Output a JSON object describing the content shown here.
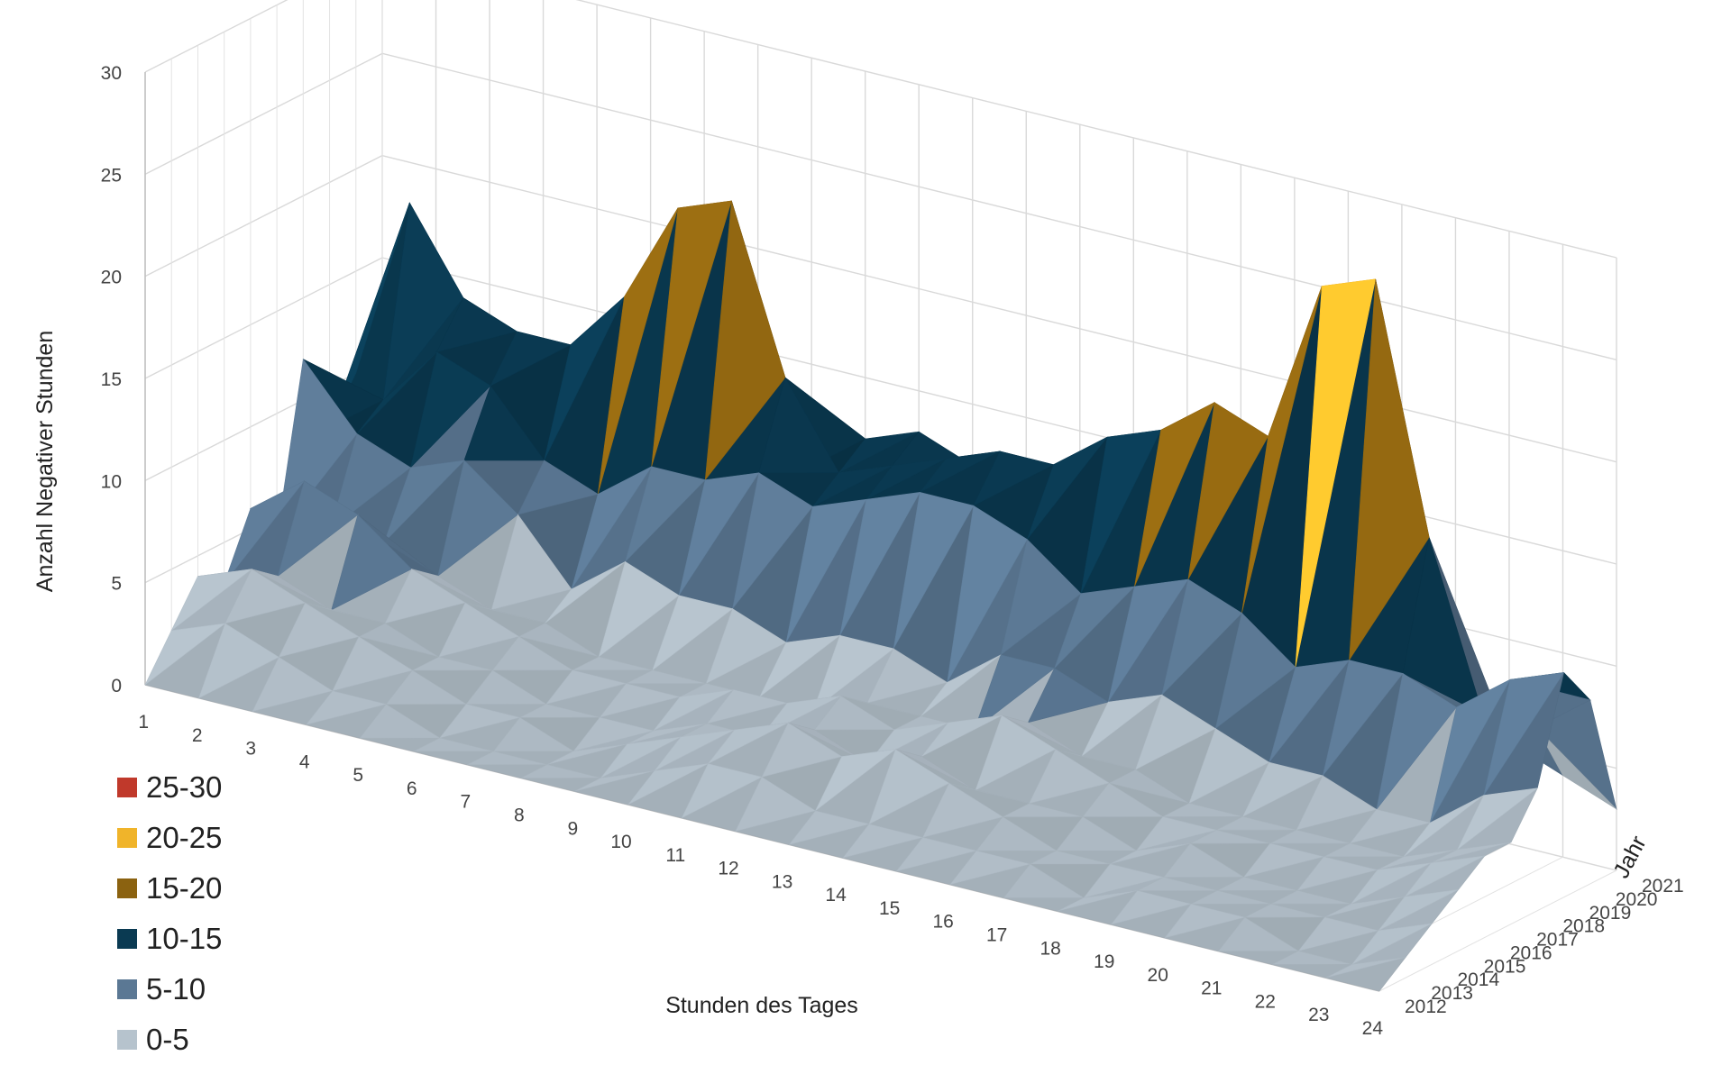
{
  "chart_data": {
    "type": "surface",
    "xlabel": "Stunden des Tages",
    "ylabel": "Anzahl Negativer Stunden",
    "zlabel": "Jahr",
    "zlim": [
      0,
      30
    ],
    "z_ticks": [
      "0",
      "5",
      "10",
      "15",
      "20",
      "25",
      "30"
    ],
    "x_ticks": [
      "1",
      "2",
      "3",
      "4",
      "5",
      "6",
      "7",
      "8",
      "9",
      "10",
      "11",
      "12",
      "13",
      "14",
      "15",
      "16",
      "17",
      "18",
      "19",
      "20",
      "21",
      "22",
      "23",
      "24"
    ],
    "years": [
      "2012",
      "2013",
      "2014",
      "2015",
      "2016",
      "2017",
      "2018",
      "2019",
      "2020",
      "2021"
    ],
    "grid": true,
    "legend_position": "bottom-left",
    "legend": [
      {
        "label": "25-30",
        "color": "#c0392b"
      },
      {
        "label": "20-25",
        "color": "#f0b42a"
      },
      {
        "label": "15-20",
        "color": "#8b6210"
      },
      {
        "label": "10-15",
        "color": "#0a3a52"
      },
      {
        "label": "5-10",
        "color": "#5b7894"
      },
      {
        "label": "0-5",
        "color": "#b6c3cd"
      }
    ],
    "series": [
      {
        "name": "2012",
        "values": [
          0,
          0,
          0,
          0,
          0,
          0,
          0,
          0,
          0,
          0,
          0,
          0,
          0,
          0,
          0,
          0,
          0,
          0,
          0,
          0,
          0,
          0,
          0,
          0
        ]
      },
      {
        "name": "2013",
        "values": [
          2,
          3,
          2,
          1,
          1,
          0,
          0,
          0,
          0,
          1,
          2,
          2,
          1,
          1,
          1,
          1,
          1,
          0,
          1,
          1,
          1,
          0,
          0,
          1
        ]
      },
      {
        "name": "2014",
        "values": [
          4,
          5,
          4,
          3,
          2,
          1,
          1,
          0,
          1,
          2,
          3,
          4,
          3,
          4,
          3,
          2,
          1,
          1,
          1,
          1,
          1,
          1,
          1,
          2
        ]
      },
      {
        "name": "2015",
        "values": [
          3,
          4,
          3,
          3,
          2,
          2,
          1,
          1,
          1,
          2,
          2,
          3,
          2,
          3,
          2,
          2,
          2,
          1,
          2,
          1,
          1,
          1,
          2,
          3
        ]
      },
      {
        "name": "2016",
        "values": [
          6,
          8,
          7,
          5,
          4,
          3,
          2,
          2,
          2,
          3,
          3,
          4,
          3,
          4,
          5,
          4,
          3,
          2,
          2,
          2,
          2,
          2,
          3,
          4
        ]
      },
      {
        "name": "2017",
        "values": [
          4,
          5,
          5,
          4,
          3,
          3,
          2,
          2,
          2,
          2,
          2,
          3,
          3,
          3,
          4,
          3,
          3,
          2,
          2,
          2,
          2,
          2,
          3,
          4
        ]
      },
      {
        "name": "2018",
        "values": [
          12,
          9,
          8,
          9,
          7,
          4,
          6,
          5,
          5,
          4,
          5,
          5,
          4,
          6,
          6,
          5,
          6,
          5,
          4,
          4,
          3,
          3,
          5,
          6
        ]
      },
      {
        "name": "2019",
        "values": [
          8,
          10,
          13,
          12,
          9,
          8,
          10,
          10,
          11,
          10,
          11,
          12,
          12,
          11,
          9,
          10,
          11,
          10,
          8,
          9,
          9,
          8,
          10,
          11
        ]
      },
      {
        "name": "2020",
        "values": [
          10,
          19,
          15,
          14,
          14,
          17,
          22,
          23,
          15,
          11,
          12,
          13,
          14,
          14,
          16,
          17,
          19,
          18,
          26,
          27,
          15,
          7,
          7,
          9
        ]
      },
      {
        "name": "2021",
        "values": [
          3,
          4,
          5,
          6,
          7,
          8,
          9,
          10,
          10,
          12,
          13,
          12,
          11,
          9,
          8,
          9,
          10,
          9,
          8,
          7,
          6,
          5,
          4,
          3
        ]
      }
    ]
  }
}
